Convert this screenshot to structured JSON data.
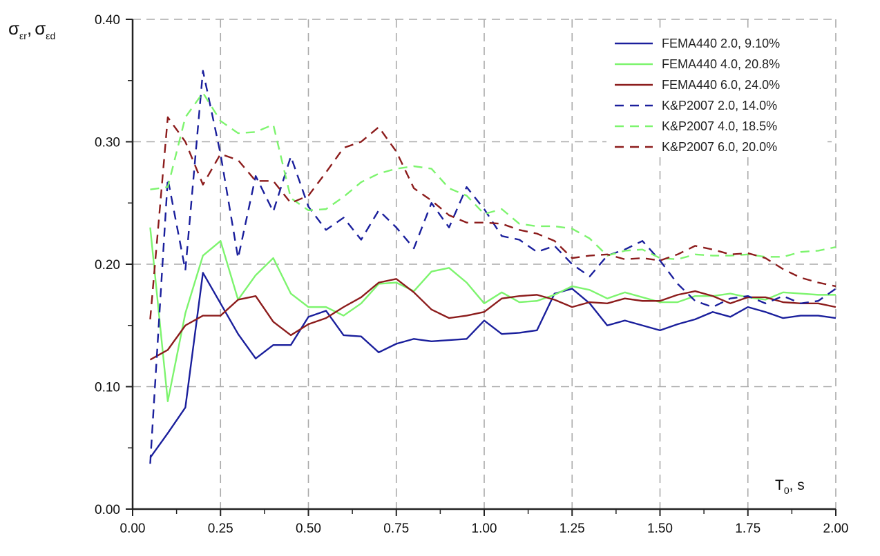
{
  "chart_data": {
    "type": "line",
    "title": "",
    "xlabel": "T0, s",
    "xlabel_main": "T",
    "xlabel_sub": "0",
    "xlabel_unit": ", s",
    "ylabel": "σεr, σεd",
    "ylabel_parts": {
      "sym": "σ",
      "sub1": "εr",
      "sep": ",",
      "sub2": "εd"
    },
    "xlim": [
      0,
      2.0
    ],
    "ylim": [
      0,
      0.4
    ],
    "xticks": [
      "0.00",
      "0.25",
      "0.50",
      "0.75",
      "1.00",
      "1.25",
      "1.50",
      "1.75",
      "2.00"
    ],
    "yticks": [
      "0.00",
      "0.10",
      "0.20",
      "0.30",
      "0.40"
    ],
    "grid": true,
    "legend_position": "top-right",
    "x": [
      0.05,
      0.1,
      0.15,
      0.2,
      0.25,
      0.3,
      0.35,
      0.4,
      0.45,
      0.5,
      0.55,
      0.6,
      0.65,
      0.7,
      0.75,
      0.8,
      0.85,
      0.9,
      0.95,
      1.0,
      1.05,
      1.1,
      1.15,
      1.2,
      1.25,
      1.3,
      1.35,
      1.4,
      1.45,
      1.5,
      1.55,
      1.6,
      1.65,
      1.7,
      1.75,
      1.8,
      1.85,
      1.9,
      1.95,
      2.0
    ],
    "series": [
      {
        "name": "FEMA440 2.0, 9.10%",
        "color": "#1a1f9c",
        "dash": false,
        "values": [
          0.042,
          0.062,
          0.083,
          0.193,
          0.168,
          0.143,
          0.123,
          0.134,
          0.134,
          0.157,
          0.162,
          0.142,
          0.141,
          0.128,
          0.135,
          0.139,
          0.137,
          0.138,
          0.139,
          0.154,
          0.143,
          0.144,
          0.146,
          0.176,
          0.18,
          0.168,
          0.15,
          0.154,
          0.15,
          0.146,
          0.151,
          0.155,
          0.161,
          0.157,
          0.165,
          0.161,
          0.156,
          0.158,
          0.158,
          0.156
        ]
      },
      {
        "name": "FEMA440 4.0, 20.8%",
        "color": "#7df46e",
        "dash": false,
        "values": [
          0.23,
          0.088,
          0.16,
          0.207,
          0.219,
          0.171,
          0.191,
          0.205,
          0.176,
          0.165,
          0.165,
          0.158,
          0.168,
          0.184,
          0.185,
          0.178,
          0.194,
          0.197,
          0.185,
          0.168,
          0.177,
          0.169,
          0.17,
          0.175,
          0.182,
          0.179,
          0.172,
          0.177,
          0.173,
          0.169,
          0.169,
          0.174,
          0.174,
          0.176,
          0.173,
          0.171,
          0.177,
          0.176,
          0.175,
          0.175
        ]
      },
      {
        "name": "FEMA440 6.0, 24.0%",
        "color": "#8c1c1c",
        "dash": false,
        "values": [
          0.122,
          0.13,
          0.15,
          0.158,
          0.158,
          0.171,
          0.174,
          0.153,
          0.142,
          0.151,
          0.156,
          0.165,
          0.173,
          0.185,
          0.188,
          0.177,
          0.163,
          0.156,
          0.158,
          0.161,
          0.172,
          0.174,
          0.175,
          0.171,
          0.165,
          0.169,
          0.168,
          0.172,
          0.17,
          0.17,
          0.175,
          0.178,
          0.174,
          0.168,
          0.173,
          0.173,
          0.169,
          0.168,
          0.168,
          0.165
        ]
      },
      {
        "name": "K&P2007 2.0, 14.0%",
        "color": "#1a1f9c",
        "dash": true,
        "values": [
          0.037,
          0.27,
          0.195,
          0.358,
          0.29,
          0.205,
          0.272,
          0.243,
          0.288,
          0.247,
          0.228,
          0.238,
          0.22,
          0.244,
          0.23,
          0.213,
          0.25,
          0.23,
          0.263,
          0.245,
          0.223,
          0.22,
          0.21,
          0.215,
          0.2,
          0.19,
          0.207,
          0.212,
          0.219,
          0.203,
          0.184,
          0.17,
          0.165,
          0.172,
          0.174,
          0.168,
          0.174,
          0.168,
          0.17,
          0.18
        ]
      },
      {
        "name": "K&P2007 4.0, 18.5%",
        "color": "#7df46e",
        "dash": true,
        "values": [
          0.261,
          0.263,
          0.32,
          0.34,
          0.317,
          0.307,
          0.308,
          0.314,
          0.254,
          0.244,
          0.245,
          0.255,
          0.267,
          0.274,
          0.278,
          0.28,
          0.278,
          0.262,
          0.256,
          0.241,
          0.245,
          0.233,
          0.231,
          0.231,
          0.229,
          0.221,
          0.207,
          0.211,
          0.212,
          0.205,
          0.204,
          0.208,
          0.207,
          0.207,
          0.208,
          0.206,
          0.206,
          0.21,
          0.211,
          0.214
        ]
      },
      {
        "name": "K&P2007 6.0, 20.0%",
        "color": "#8c1c1c",
        "dash": true,
        "values": [
          0.155,
          0.32,
          0.3,
          0.265,
          0.29,
          0.285,
          0.268,
          0.268,
          0.25,
          0.256,
          0.275,
          0.295,
          0.3,
          0.312,
          0.292,
          0.262,
          0.252,
          0.24,
          0.234,
          0.234,
          0.233,
          0.228,
          0.225,
          0.219,
          0.205,
          0.207,
          0.208,
          0.204,
          0.205,
          0.203,
          0.208,
          0.215,
          0.212,
          0.208,
          0.209,
          0.205,
          0.196,
          0.189,
          0.185,
          0.182
        ]
      }
    ]
  }
}
